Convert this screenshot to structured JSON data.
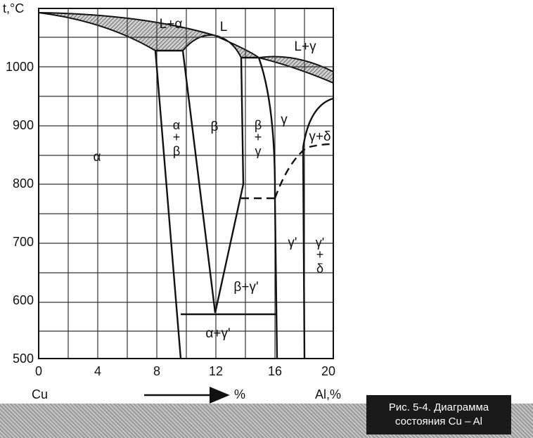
{
  "diagram": {
    "y_axis_label": "t,°C",
    "y_ticks": [
      {
        "value": 500,
        "label": "500"
      },
      {
        "value": 600,
        "label": "600"
      },
      {
        "value": 700,
        "label": "700"
      },
      {
        "value": 800,
        "label": "800"
      },
      {
        "value": 900,
        "label": "900"
      },
      {
        "value": 1000,
        "label": "1000"
      }
    ],
    "x_ticks": [
      {
        "value": 0,
        "label": "0"
      },
      {
        "value": 4,
        "label": "4"
      },
      {
        "value": 8,
        "label": "8"
      },
      {
        "value": 12,
        "label": "12"
      },
      {
        "value": 16,
        "label": "16"
      },
      {
        "value": 20,
        "label": "20"
      }
    ],
    "x_left_label": "Cu",
    "x_mid_label": "%",
    "x_right_label": "Al,%",
    "phase_labels": {
      "alpha": "α",
      "l_alpha": "L+α",
      "l": "L",
      "l_gamma": "L+γ",
      "beta": "β",
      "gamma": "γ",
      "gamma_delta": "γ+δ",
      "gamma_prime": "γ'",
      "beta_gamma_prime": "β+γ'",
      "alpha_gamma_prime": "α+γ'"
    },
    "stacked_labels": {
      "alpha_beta": [
        "α",
        "+",
        "β"
      ],
      "beta_gamma": [
        "β",
        "+",
        "γ"
      ],
      "gammaprime_delta": [
        "γ'",
        "+",
        "δ"
      ]
    },
    "colors": {
      "ink": "#111111",
      "hatch": "#555555"
    }
  },
  "caption": {
    "line1": "Рис. 5-4. Диаграмма",
    "line2": "состояния Cu – Al"
  }
}
